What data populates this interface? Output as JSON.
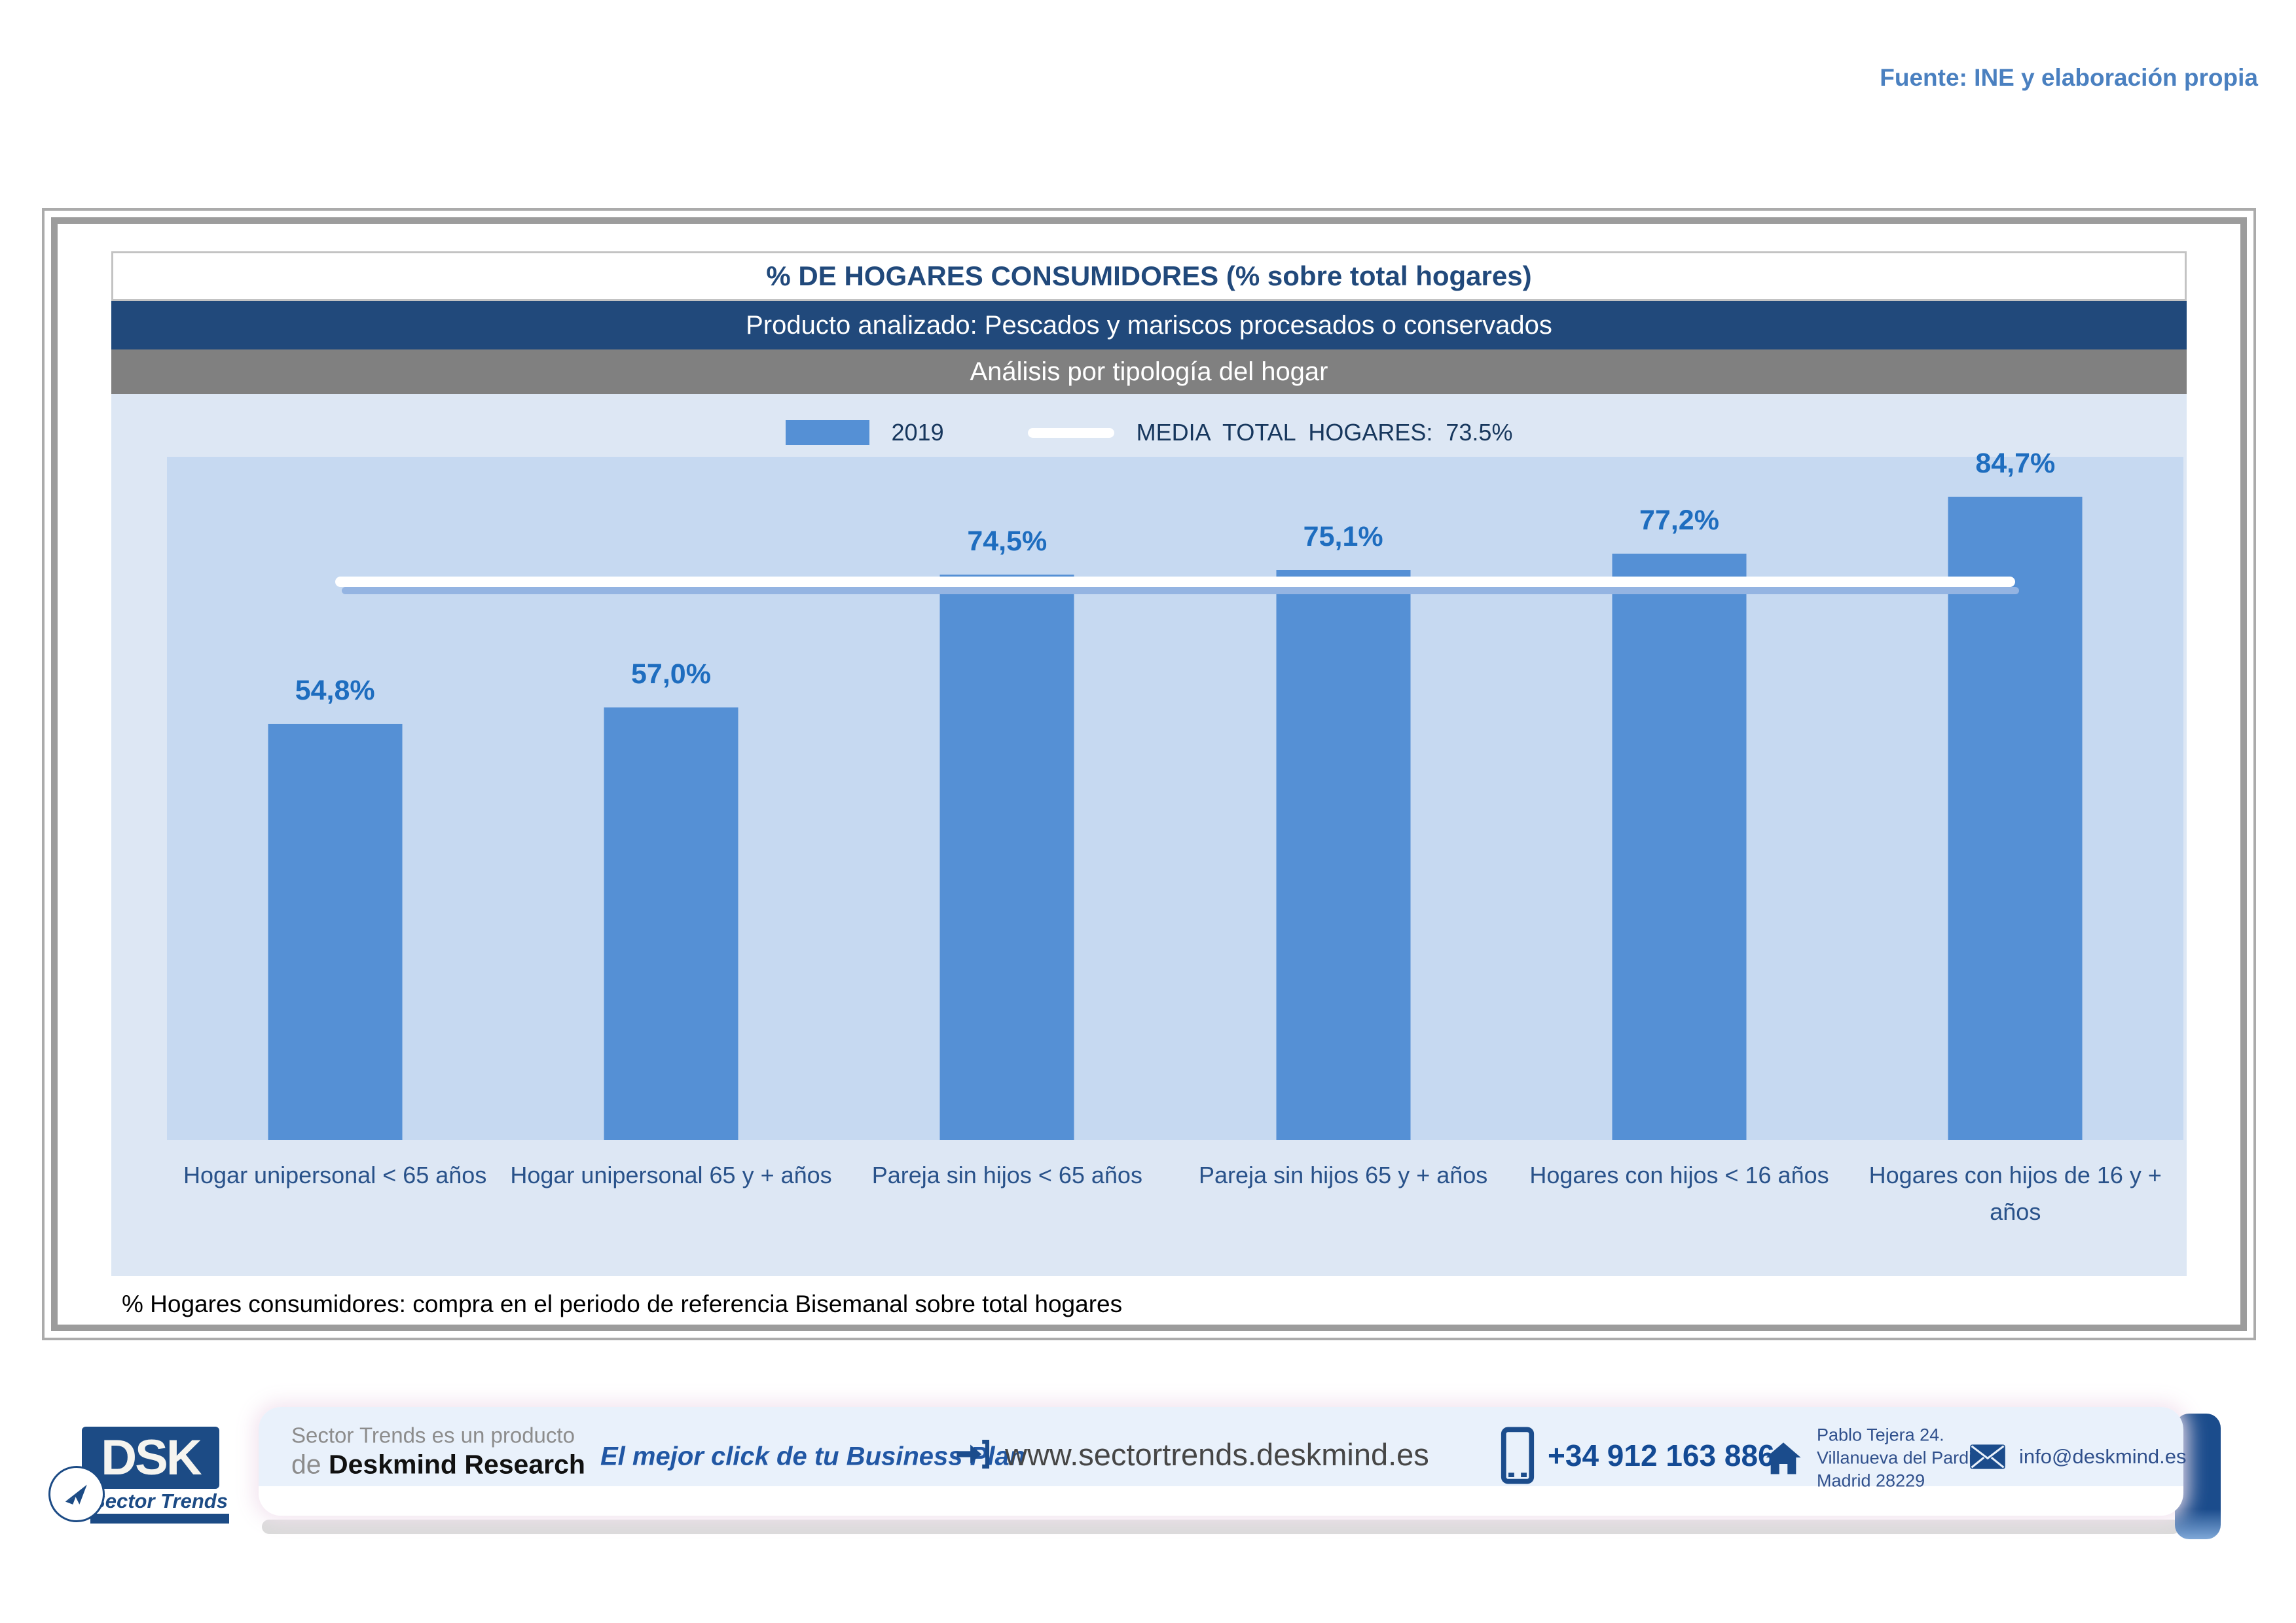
{
  "source_note": "Fuente: INE y elaboración propia",
  "chart": {
    "title": "% DE HOGARES CONSUMIDORES (% sobre total hogares)",
    "subtitle_product": "Producto analizado: Pescados y mariscos procesados o conservados",
    "subtitle_analysis": "Análisis por tipología del hogar",
    "legend": {
      "series_label": "2019",
      "media_label": "MEDIA TOTAL HOGARES: 73.5%"
    },
    "footnote": "% Hogares consumidores: compra en el periodo de referencia Bisemanal sobre total hogares"
  },
  "chart_data": {
    "type": "bar",
    "title": "% DE HOGARES CONSUMIDORES (% sobre total hogares)",
    "categories": [
      "Hogar unipersonal < 65 años",
      "Hogar unipersonal  65 y + años",
      "Pareja sin hijos < 65 años",
      "Pareja sin hijos 65 y + años",
      "Hogares con hijos < 16 años",
      "Hogares con hijos de 16 y + años"
    ],
    "series": [
      {
        "name": "2019",
        "values": [
          54.8,
          57.0,
          74.5,
          75.1,
          77.2,
          84.7
        ]
      }
    ],
    "value_labels": [
      "54,8%",
      "57,0%",
      "74,5%",
      "75,1%",
      "77,2%",
      "84,7%"
    ],
    "reference_line": {
      "name": "MEDIA TOTAL HOGARES",
      "value": 73.5,
      "display": "73.5%"
    },
    "ylim": [
      0,
      90
    ],
    "grid": false,
    "legend_position": "top",
    "colors": {
      "bar": "#5590d5",
      "reference_line": "#ffffff",
      "plot_background": "#c6d9f1",
      "chart_background": "#dde7f4",
      "value_label": "#1e6dbf"
    }
  },
  "footer": {
    "logo": {
      "acronym": "DSK",
      "brand": "Sector Trends"
    },
    "product_line_1": "Sector Trends es un producto",
    "product_line_2_prefix": "de ",
    "product_line_2_brand": "Deskmind Research",
    "tagline": "El mejor click de tu Business Plan",
    "website": "www.sectortrends.deskmind.es",
    "phone": "+34 912 163 886",
    "address_line_1": "Pablo Tejera 24.",
    "address_line_2": "Villanueva del Pardillo.",
    "address_line_3": "Madrid 28229",
    "email": "info@deskmind.es"
  }
}
